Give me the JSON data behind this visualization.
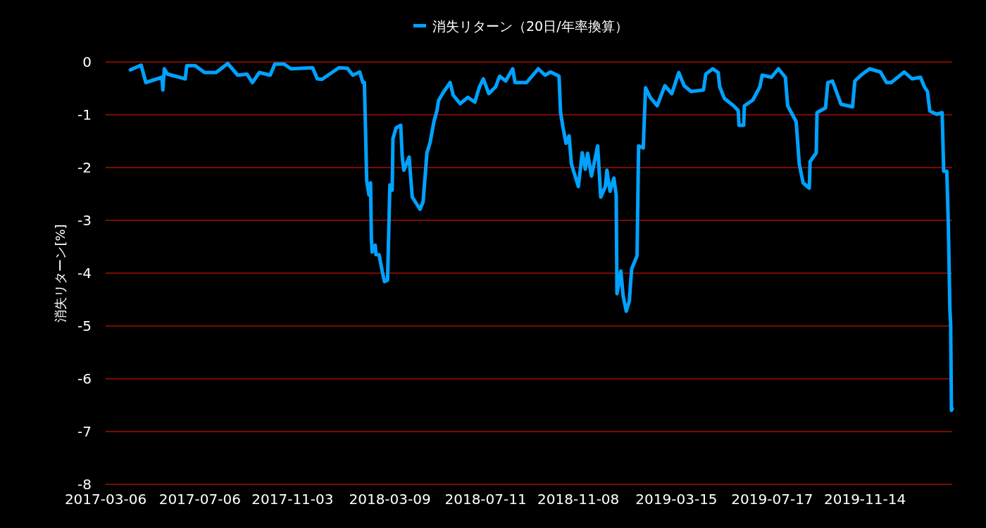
{
  "chart_data": {
    "type": "line",
    "ylabel": "消失リターン[%]",
    "xlim": [
      "2017-03-06",
      "2020-03-06"
    ],
    "xticks": [
      "2017-03-06",
      "2017-07-06",
      "2017-11-03",
      "2018-03-09",
      "2018-07-11",
      "2018-11-08",
      "2019-03-15",
      "2019-07-17",
      "2019-11-14"
    ],
    "ylim": [
      -8,
      0
    ],
    "yticks": [
      -8,
      -7,
      -6,
      -5,
      -4,
      -3,
      -2,
      -1,
      0
    ],
    "grid": "y",
    "legend": "top",
    "line_style": "solid",
    "x": [
      "2017-04-07",
      "2017-04-21",
      "2017-04-27",
      "2017-05-18",
      "2017-05-19",
      "2017-05-21",
      "2017-05-25",
      "2017-06-17",
      "2017-06-19",
      "2017-06-30",
      "2017-07-12",
      "2017-07-27",
      "2017-08-11",
      "2017-08-24",
      "2017-09-05",
      "2017-09-12",
      "2017-09-21",
      "2017-10-05",
      "2017-10-11",
      "2017-10-23",
      "2017-11-01",
      "2017-11-29",
      "2017-12-05",
      "2017-12-11",
      "2018-01-02",
      "2018-01-13",
      "2018-01-20",
      "2018-01-29",
      "2018-02-02",
      "2018-02-04",
      "2018-02-07",
      "2018-02-10",
      "2018-02-12",
      "2018-02-13",
      "2018-02-14",
      "2018-02-18",
      "2018-02-19",
      "2018-02-23",
      "2018-02-27",
      "2018-03-02",
      "2018-03-06",
      "2018-03-09",
      "2018-03-12",
      "2018-03-13",
      "2018-03-17",
      "2018-03-23",
      "2018-03-25",
      "2018-03-27",
      "2018-04-03",
      "2018-04-05",
      "2018-04-07",
      "2018-04-17",
      "2018-04-21",
      "2018-04-26",
      "2018-04-30",
      "2018-05-05",
      "2018-05-09",
      "2018-05-11",
      "2018-05-17",
      "2018-05-26",
      "2018-05-30",
      "2018-06-08",
      "2018-06-18",
      "2018-06-27",
      "2018-07-03",
      "2018-07-08",
      "2018-07-15",
      "2018-07-24",
      "2018-07-29",
      "2018-08-06",
      "2018-08-15",
      "2018-08-18",
      "2018-09-02",
      "2018-09-17",
      "2018-09-26",
      "2018-10-03",
      "2018-10-14",
      "2018-10-16",
      "2018-10-19",
      "2018-10-23",
      "2018-10-27",
      "2018-10-30",
      "2018-11-08",
      "2018-11-13",
      "2018-11-17",
      "2018-11-20",
      "2018-11-25",
      "2018-12-03",
      "2018-12-07",
      "2018-12-13",
      "2018-12-15",
      "2018-12-19",
      "2018-12-24",
      "2018-12-27",
      "2018-12-28",
      "2019-01-02",
      "2019-01-05",
      "2019-01-09",
      "2019-01-13",
      "2019-01-16",
      "2019-01-23",
      "2019-01-25",
      "2019-01-31",
      "2019-02-03",
      "2019-02-09",
      "2019-02-18",
      "2019-02-28",
      "2019-03-09",
      "2019-03-18",
      "2019-03-25",
      "2019-04-03",
      "2019-04-19",
      "2019-04-22",
      "2019-05-01",
      "2019-05-08",
      "2019-05-10",
      "2019-05-16",
      "2019-05-28",
      "2019-06-03",
      "2019-06-04",
      "2019-06-10",
      "2019-06-11",
      "2019-06-22",
      "2019-07-01",
      "2019-07-04",
      "2019-07-16",
      "2019-07-25",
      "2019-08-03",
      "2019-08-06",
      "2019-08-17",
      "2019-08-21",
      "2019-08-26",
      "2019-09-03",
      "2019-09-04",
      "2019-09-12",
      "2019-09-13",
      "2019-09-24",
      "2019-09-27",
      "2019-10-03",
      "2019-10-14",
      "2019-10-29",
      "2019-11-01",
      "2019-11-09",
      "2019-11-20",
      "2019-12-04",
      "2019-12-12",
      "2019-12-18",
      "2020-01-04",
      "2020-01-14",
      "2020-01-25",
      "2020-01-30",
      "2020-02-03",
      "2020-02-06",
      "2020-02-15",
      "2020-02-22",
      "2020-02-24",
      "2020-02-28",
      "2020-03-01",
      "2020-03-03",
      "2020-03-04",
      "2020-03-05",
      "2020-03-06"
    ],
    "series": [
      {
        "name": "消失リターン（20日/年率換算）",
        "color": "#00a2ff",
        "values": [
          -0.15,
          -0.06,
          -0.39,
          -0.29,
          -0.53,
          -0.13,
          -0.23,
          -0.32,
          -0.07,
          -0.07,
          -0.2,
          -0.2,
          -0.03,
          -0.25,
          -0.23,
          -0.39,
          -0.2,
          -0.25,
          -0.04,
          -0.04,
          -0.13,
          -0.11,
          -0.32,
          -0.33,
          -0.11,
          -0.12,
          -0.25,
          -0.19,
          -0.39,
          -0.39,
          -2.25,
          -2.52,
          -2.29,
          -3.32,
          -3.6,
          -3.47,
          -3.65,
          -3.65,
          -3.96,
          -4.16,
          -4.13,
          -2.33,
          -2.43,
          -1.45,
          -1.25,
          -1.2,
          -1.8,
          -2.05,
          -1.8,
          -2.2,
          -2.56,
          -2.79,
          -2.65,
          -1.72,
          -1.53,
          -1.13,
          -0.92,
          -0.73,
          -0.58,
          -0.39,
          -0.63,
          -0.79,
          -0.67,
          -0.76,
          -0.47,
          -0.32,
          -0.6,
          -0.47,
          -0.27,
          -0.36,
          -0.13,
          -0.39,
          -0.39,
          -0.13,
          -0.25,
          -0.19,
          -0.27,
          -0.96,
          -1.23,
          -1.54,
          -1.4,
          -1.93,
          -2.36,
          -1.72,
          -2.03,
          -1.73,
          -2.16,
          -1.59,
          -2.56,
          -2.36,
          -2.05,
          -2.45,
          -2.2,
          -2.52,
          -4.39,
          -3.96,
          -4.43,
          -4.72,
          -4.53,
          -3.92,
          -3.67,
          -1.59,
          -1.63,
          -0.49,
          -0.67,
          -0.83,
          -0.45,
          -0.6,
          -0.2,
          -0.45,
          -0.56,
          -0.53,
          -0.23,
          -0.13,
          -0.2,
          -0.47,
          -0.69,
          -0.83,
          -0.92,
          -1.2,
          -1.2,
          -0.83,
          -0.72,
          -0.47,
          -0.25,
          -0.29,
          -0.13,
          -0.29,
          -0.83,
          -1.13,
          -1.93,
          -2.29,
          -2.39,
          -1.89,
          -1.72,
          -0.96,
          -0.87,
          -0.39,
          -0.36,
          -0.8,
          -0.85,
          -0.36,
          -0.25,
          -0.13,
          -0.19,
          -0.39,
          -0.39,
          -0.19,
          -0.32,
          -0.29,
          -0.47,
          -0.56,
          -0.93,
          -0.99,
          -0.96,
          -2.07,
          -2.07,
          -3.07,
          -4.67,
          -4.97,
          -6.6,
          -6.57
        ]
      }
    ]
  }
}
